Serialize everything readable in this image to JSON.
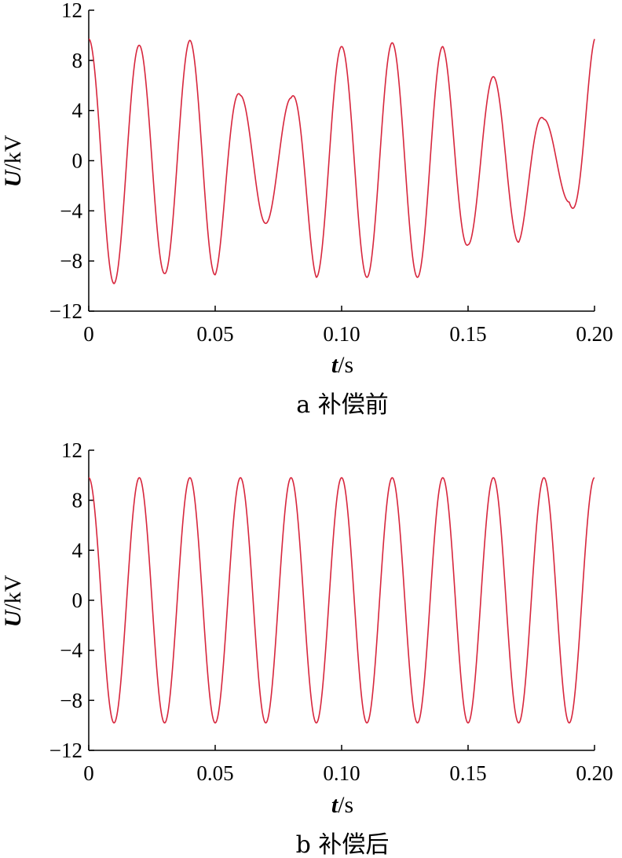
{
  "colors": {
    "series": "#d7263d",
    "axis": "#000000"
  },
  "chart_data": [
    {
      "type": "line",
      "caption": "a 补偿前",
      "xlabel_symbol": "t",
      "xlabel_unit": "/s",
      "ylabel_symbol": "U",
      "ylabel_unit": "/kV",
      "xlim": [
        0,
        0.2
      ],
      "ylim": [
        -12,
        12
      ],
      "xticks": [
        0,
        0.05,
        0.1,
        0.15,
        0.2
      ],
      "xtick_labels": [
        "0",
        "0.05",
        "0.10",
        "0.15",
        "0.20"
      ],
      "yticks": [
        -12,
        -8,
        -4,
        0,
        4,
        8,
        12
      ],
      "ytick_labels": [
        "−12",
        "−8",
        "−4",
        "0",
        "4",
        "8",
        "12"
      ],
      "grid": false,
      "frequency_hz": 50,
      "series": [
        {
          "waveform": "cosine",
          "envelope_t": [
            0,
            0.01,
            0.02,
            0.03,
            0.04,
            0.05,
            0.06,
            0.07,
            0.08,
            0.09,
            0.1,
            0.11,
            0.12,
            0.13,
            0.14,
            0.15,
            0.16,
            0.17,
            0.18,
            0.19,
            0.2
          ],
          "envelope_amp": [
            9.7,
            9.8,
            9.2,
            9.0,
            9.6,
            9.1,
            5.2,
            5.0,
            5.0,
            9.3,
            9.1,
            9.3,
            9.4,
            9.3,
            9.1,
            6.7,
            6.7,
            6.5,
            3.3,
            3.3,
            9.7
          ]
        }
      ]
    },
    {
      "type": "line",
      "caption": "b 补偿后",
      "xlabel_symbol": "t",
      "xlabel_unit": "/s",
      "ylabel_symbol": "U",
      "ylabel_unit": "/kV",
      "xlim": [
        0,
        0.2
      ],
      "ylim": [
        -12,
        12
      ],
      "xticks": [
        0,
        0.05,
        0.1,
        0.15,
        0.2
      ],
      "xtick_labels": [
        "0",
        "0.05",
        "0.10",
        "0.15",
        "0.20"
      ],
      "yticks": [
        -12,
        -8,
        -4,
        0,
        4,
        8,
        12
      ],
      "ytick_labels": [
        "−12",
        "−8",
        "−4",
        "0",
        "4",
        "8",
        "12"
      ],
      "grid": false,
      "frequency_hz": 50,
      "series": [
        {
          "waveform": "cosine",
          "envelope_t": [
            0,
            0.2
          ],
          "envelope_amp": [
            9.8,
            9.8
          ]
        }
      ]
    }
  ]
}
